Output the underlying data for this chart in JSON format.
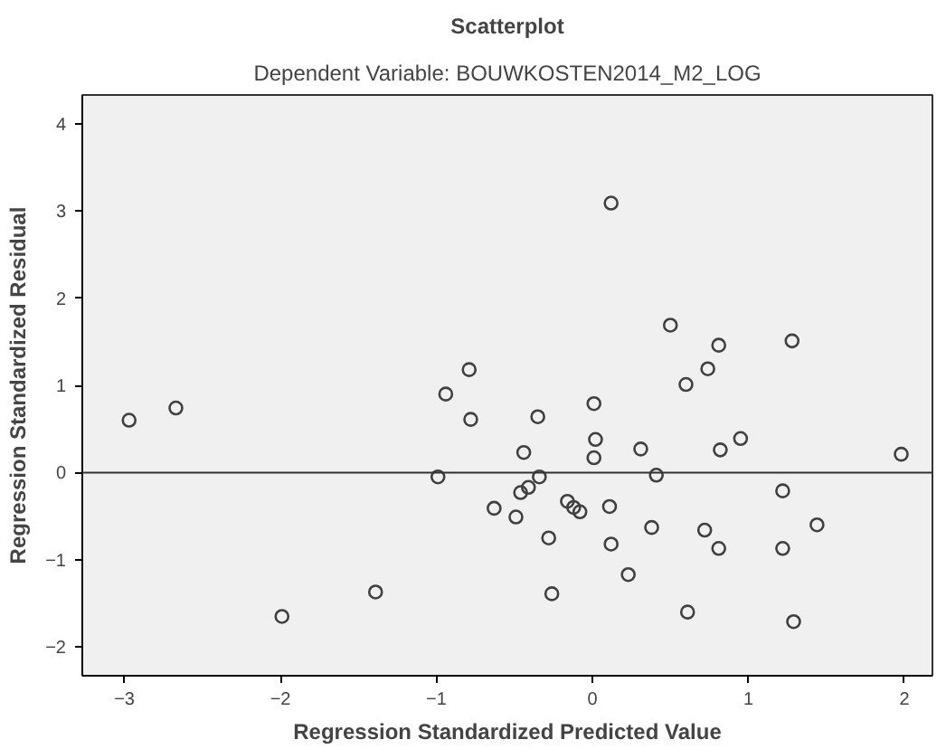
{
  "chart_data": {
    "type": "scatter",
    "title": "Scatterplot",
    "subtitle": "Dependent Variable: BOUWKOSTEN2014_M2_LOG",
    "xlabel": "Regression Standardized Predicted Value",
    "ylabel": "Regression Standardized Residual",
    "xlim": [
      -3.27,
      2.18
    ],
    "ylim": [
      -2.33,
      4.33
    ],
    "xticks": [
      -3,
      -2,
      -1,
      0,
      1,
      2
    ],
    "yticks": [
      -2,
      -1,
      0,
      1,
      2,
      3,
      4
    ],
    "grid": false,
    "marker": "circle",
    "ref_lines": [
      {
        "axis": "y",
        "value": 0,
        "color": "#333333"
      }
    ],
    "series": [
      {
        "color": "#404040",
        "x": [
          -2.97,
          -2.67,
          -0.94,
          -0.79,
          -0.78,
          0.12,
          0.5,
          0.81,
          1.28,
          0.74,
          0.6,
          -0.35,
          0.01,
          0.02,
          -0.99,
          -1.39,
          -1.99,
          -0.44,
          0.01,
          0.31,
          0.82,
          0.95,
          1.98,
          -0.34,
          0.41,
          -0.41,
          -0.46,
          -0.63,
          -0.49,
          -0.16,
          -0.12,
          -0.08,
          0.11,
          -0.28,
          0.12,
          0.38,
          0.72,
          0.81,
          1.22,
          1.22,
          1.44,
          0.23,
          -0.26,
          0.61,
          1.29
        ],
        "values": [
          0.6,
          0.74,
          0.9,
          1.18,
          0.61,
          3.09,
          1.69,
          1.46,
          1.51,
          1.19,
          1.01,
          0.64,
          0.79,
          0.38,
          -0.05,
          -1.37,
          -1.65,
          0.23,
          0.17,
          0.27,
          0.26,
          0.39,
          0.21,
          -0.05,
          -0.03,
          -0.17,
          -0.23,
          -0.41,
          -0.51,
          -0.33,
          -0.4,
          -0.45,
          -0.39,
          -0.75,
          -0.82,
          -0.63,
          -0.66,
          -0.87,
          -0.21,
          -0.87,
          -0.6,
          -1.17,
          -1.39,
          -1.6,
          -1.71
        ]
      }
    ]
  }
}
